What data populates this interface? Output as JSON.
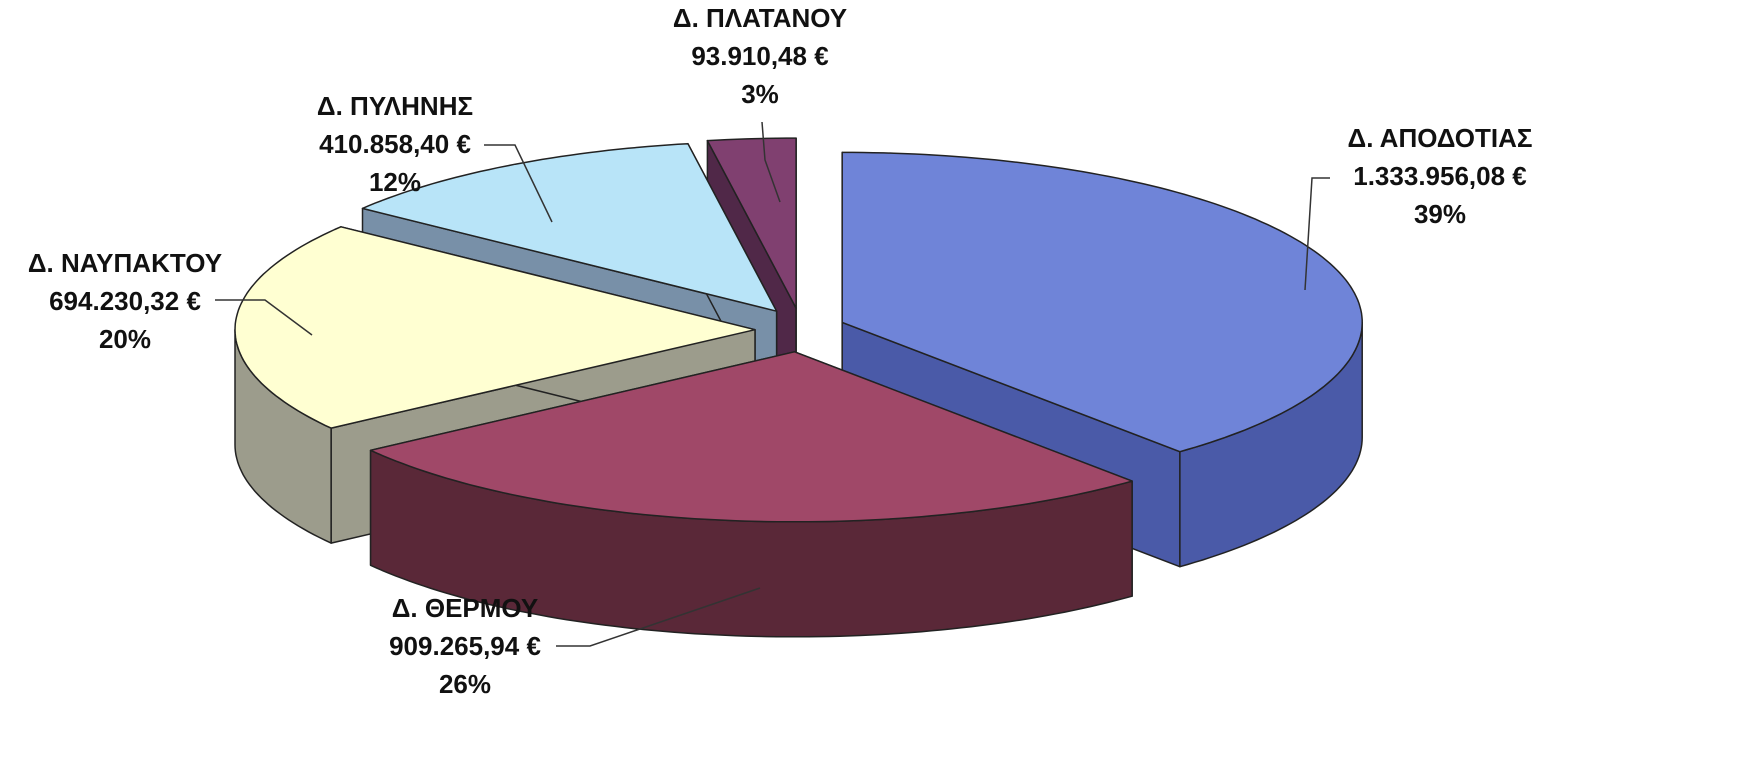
{
  "chart_data": {
    "type": "pie3d",
    "categories": [
      "Δ. ΑΠΟΔΟΤΙΑΣ",
      "Δ. ΘΕΡΜΟΥ",
      "Δ. ΝΑΥΠΑΚΤΟΥ",
      "Δ. ΠΥΛΗΝΗΣ",
      "Δ. ΠΛΑΤΑΝΟΥ"
    ],
    "values": [
      1333956.08,
      909265.94,
      694230.32,
      410858.4,
      93910.48
    ],
    "value_labels": [
      "1.333.956,08 €",
      "909.265,94 €",
      "694.230,32 €",
      "410.858,40 €",
      "93.910,48 €"
    ],
    "percent_values": [
      39,
      26,
      20,
      12,
      3
    ],
    "percent_labels": [
      "39%",
      "26%",
      "20%",
      "12%",
      "3%"
    ],
    "colors": [
      "#6f84d8",
      "#a04868",
      "#ffffd2",
      "#b8e4f8",
      "#804070"
    ],
    "side_colors": [
      "#4a5aa8",
      "#5a2838",
      "#9c9c8c",
      "#7890a8",
      "#502848"
    ]
  }
}
